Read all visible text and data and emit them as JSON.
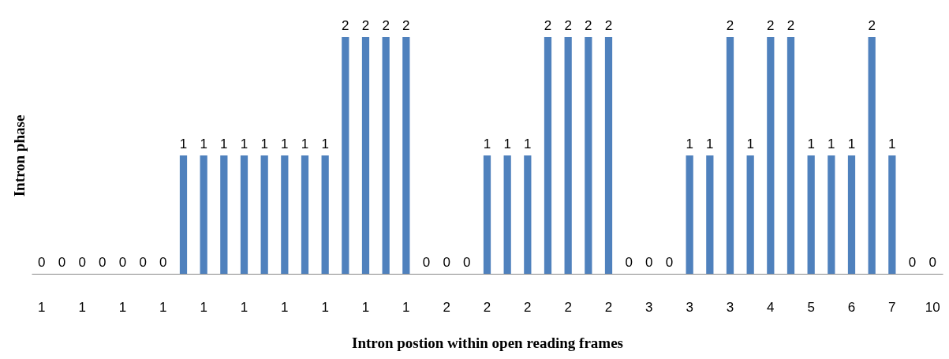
{
  "chart_data": {
    "type": "bar",
    "xlabel": "Intron postion within open reading frames",
    "ylabel": "Intron phase",
    "categories": [
      "1",
      null,
      "1",
      null,
      "1",
      null,
      "1",
      null,
      "1",
      null,
      "1",
      null,
      "1",
      null,
      "1",
      null,
      "1",
      null,
      "1",
      null,
      "2",
      null,
      "2",
      null,
      "2",
      null,
      "2",
      null,
      "2",
      null,
      "3",
      null,
      "3",
      null,
      "3",
      null,
      "4",
      null,
      "5",
      null,
      "6",
      null,
      "7",
      null,
      "10"
    ],
    "values": [
      0,
      0,
      0,
      0,
      0,
      0,
      0,
      1,
      1,
      1,
      1,
      1,
      1,
      1,
      1,
      2,
      2,
      2,
      2,
      0,
      0,
      0,
      1,
      1,
      1,
      2,
      2,
      2,
      2,
      0,
      0,
      0,
      1,
      1,
      2,
      1,
      2,
      2,
      1,
      1,
      1,
      2,
      1,
      0,
      0
    ],
    "color": "#4f81bd",
    "ylim": [
      0,
      2
    ],
    "data_labels": true,
    "grid": false,
    "tick_labels": "x"
  }
}
